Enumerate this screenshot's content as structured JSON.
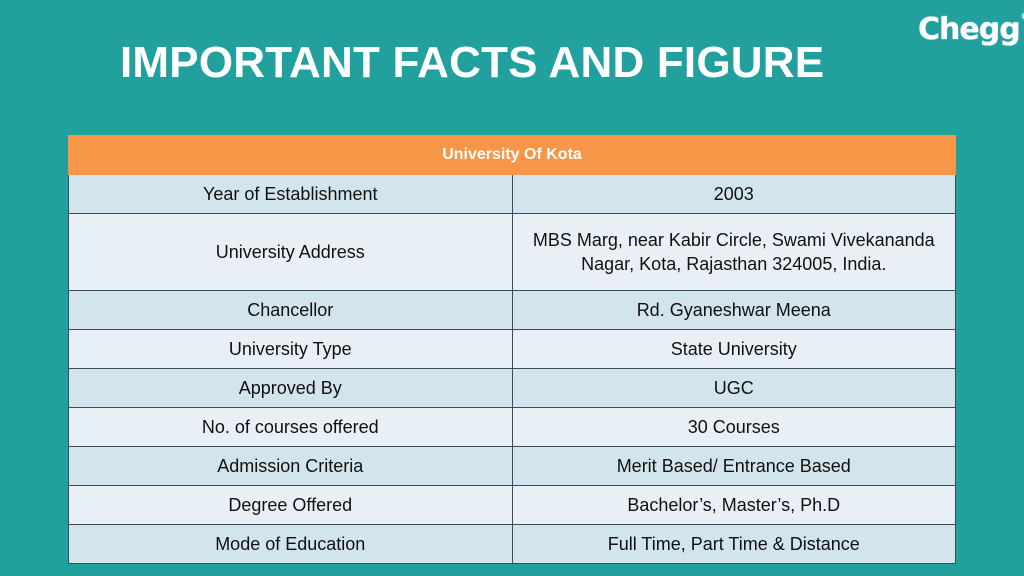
{
  "header": {
    "title": "IMPORTANT FACTS AND FIGURE",
    "logo_text": "Chegg",
    "logo_mark": "®"
  },
  "table": {
    "heading": "University Of Kota",
    "rows": [
      {
        "label": "Year of Establishment",
        "value": "2003"
      },
      {
        "label": "University Address",
        "value": "MBS Marg, near Kabir Circle, Swami Vivekananda Nagar, Kota, Rajasthan 324005, India."
      },
      {
        "label": "Chancellor",
        "value": "Rd. Gyaneshwar Meena"
      },
      {
        "label": "University Type",
        "value": "State University"
      },
      {
        "label": "Approved By",
        "value": "UGC"
      },
      {
        "label": "No. of courses offered",
        "value": "30 Courses"
      },
      {
        "label": "Admission Criteria",
        "value": "Merit Based/ Entrance Based"
      },
      {
        "label": "Degree Offered",
        "value": "Bachelor’s, Master’s, Ph.D"
      },
      {
        "label": "Mode of Education",
        "value": "Full Time, Part Time & Distance"
      }
    ]
  },
  "colors": {
    "background": "#21a09e",
    "header_row": "#f79646",
    "row_dark": "#d2e4ec",
    "row_light": "#e9f0f5"
  }
}
